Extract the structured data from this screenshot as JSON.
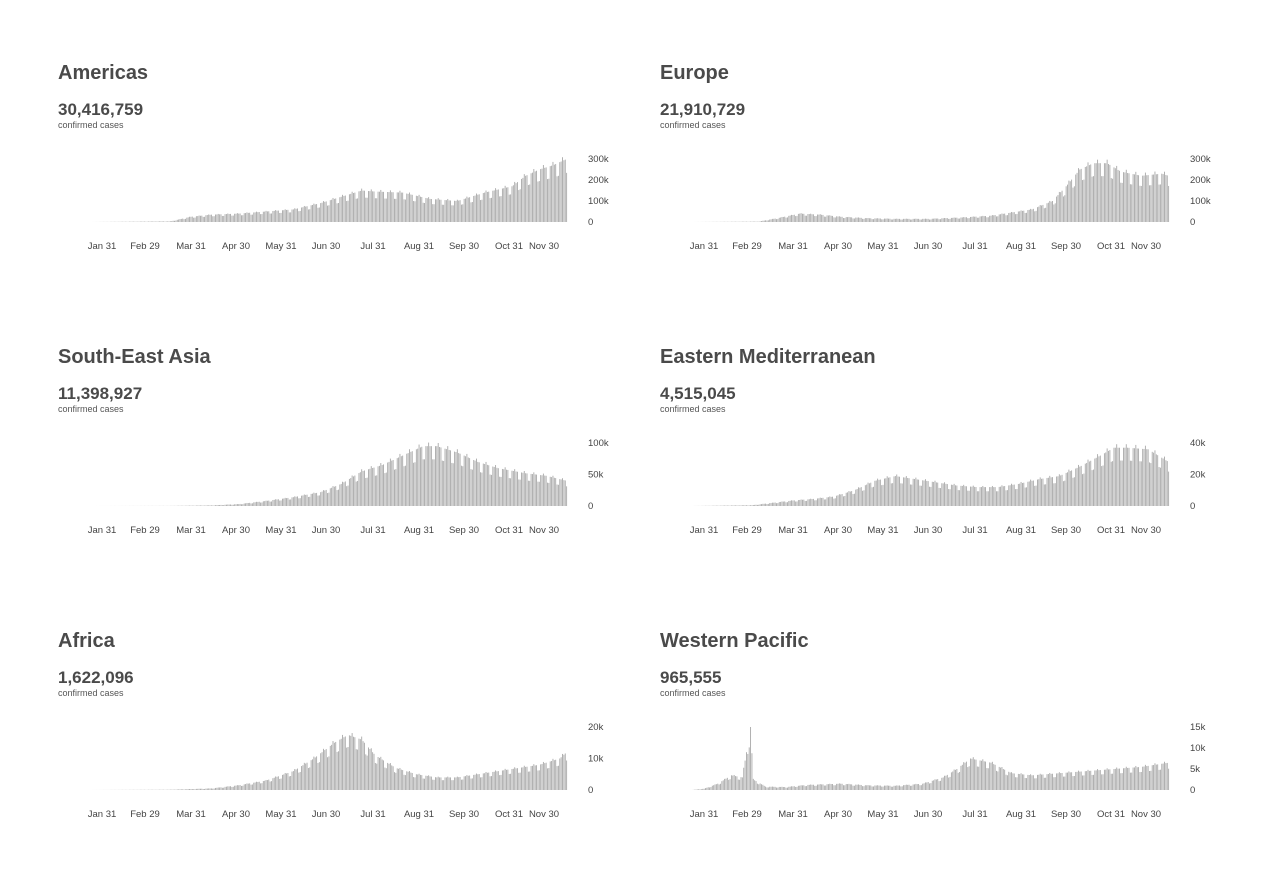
{
  "colors": {
    "bar": "#a9a9a9",
    "text": "#4a4a4a"
  },
  "chart_data": [
    {
      "type": "bar",
      "title": "Americas",
      "total": "30,416,759",
      "total_label": "confirmed cases",
      "x_ticks": [
        "Jan 31",
        "Feb 29",
        "Mar 31",
        "Apr 30",
        "May 31",
        "Jun 30",
        "Jul 31",
        "Aug 31",
        "Sep 30",
        "Oct 31",
        "Nov 30"
      ],
      "y_ticks": [
        "300k",
        "200k",
        "100k",
        "0"
      ],
      "ylim": [
        0,
        300000
      ],
      "grid": false,
      "series": [
        {
          "values": [
            [
              1,
              0
            ],
            [
              60,
              3000
            ],
            [
              75,
              25000
            ],
            [
              90,
              35000
            ],
            [
              110,
              40000
            ],
            [
              130,
              50000
            ],
            [
              150,
              60000
            ],
            [
              170,
              90000
            ],
            [
              190,
              130000
            ],
            [
              200,
              150000
            ],
            [
              210,
              145000
            ],
            [
              230,
              140000
            ],
            [
              250,
              110000
            ],
            [
              270,
              100000
            ],
            [
              290,
              140000
            ],
            [
              310,
              170000
            ],
            [
              320,
              220000
            ],
            [
              330,
              250000
            ],
            [
              340,
              270000
            ],
            [
              350,
              300000
            ]
          ]
        }
      ]
    },
    {
      "type": "bar",
      "title": "Europe",
      "total": "21,910,729",
      "total_label": "confirmed cases",
      "x_ticks": [
        "Jan 31",
        "Feb 29",
        "Mar 31",
        "Apr 30",
        "May 31",
        "Jun 30",
        "Jul 31",
        "Aug 31",
        "Sep 30",
        "Oct 31",
        "Nov 30"
      ],
      "y_ticks": [
        "300k",
        "200k",
        "100k",
        "0"
      ],
      "ylim": [
        0,
        300000
      ],
      "grid": false,
      "series": [
        {
          "values": [
            [
              1,
              0
            ],
            [
              50,
              2000
            ],
            [
              65,
              20000
            ],
            [
              80,
              40000
            ],
            [
              95,
              35000
            ],
            [
              110,
              25000
            ],
            [
              130,
              18000
            ],
            [
              150,
              15000
            ],
            [
              175,
              15000
            ],
            [
              200,
              22000
            ],
            [
              220,
              30000
            ],
            [
              235,
              45000
            ],
            [
              250,
              60000
            ],
            [
              265,
              100000
            ],
            [
              275,
              170000
            ],
            [
              285,
              250000
            ],
            [
              295,
              280000
            ],
            [
              305,
              280000
            ],
            [
              315,
              240000
            ],
            [
              330,
              220000
            ],
            [
              345,
              230000
            ],
            [
              350,
              220000
            ]
          ]
        }
      ]
    },
    {
      "type": "bar",
      "title": "South-East Asia",
      "total": "11,398,927",
      "total_label": "confirmed cases",
      "x_ticks": [
        "Jan 31",
        "Feb 29",
        "Mar 31",
        "Apr 30",
        "May 31",
        "Jun 30",
        "Jul 31",
        "Aug 31",
        "Sep 30",
        "Oct 31",
        "Nov 30"
      ],
      "y_ticks": [
        "100k",
        "50k",
        "0"
      ],
      "ylim": [
        0,
        100000
      ],
      "grid": false,
      "series": [
        {
          "values": [
            [
              1,
              0
            ],
            [
              60,
              200
            ],
            [
              90,
              1000
            ],
            [
              110,
              3000
            ],
            [
              130,
              8000
            ],
            [
              150,
              14000
            ],
            [
              170,
              22000
            ],
            [
              185,
              35000
            ],
            [
              200,
              55000
            ],
            [
              215,
              65000
            ],
            [
              230,
              80000
            ],
            [
              245,
              95000
            ],
            [
              255,
              95000
            ],
            [
              270,
              85000
            ],
            [
              285,
              70000
            ],
            [
              300,
              60000
            ],
            [
              320,
              52000
            ],
            [
              335,
              48000
            ],
            [
              350,
              40000
            ]
          ]
        }
      ]
    },
    {
      "type": "bar",
      "title": "Eastern Mediterranean",
      "total": "4,515,045",
      "total_label": "confirmed cases",
      "x_ticks": [
        "Jan 31",
        "Feb 29",
        "Mar 31",
        "Apr 30",
        "May 31",
        "Jun 30",
        "Jul 31",
        "Aug 31",
        "Sep 30",
        "Oct 31",
        "Nov 30"
      ],
      "y_ticks": [
        "40k",
        "20k",
        "0"
      ],
      "ylim": [
        0,
        40000
      ],
      "grid": false,
      "series": [
        {
          "values": [
            [
              1,
              0
            ],
            [
              45,
              500
            ],
            [
              60,
              2000
            ],
            [
              75,
              3500
            ],
            [
              90,
              4500
            ],
            [
              105,
              6000
            ],
            [
              120,
              10000
            ],
            [
              135,
              16000
            ],
            [
              150,
              19000
            ],
            [
              165,
              17000
            ],
            [
              180,
              15000
            ],
            [
              195,
              13000
            ],
            [
              210,
              12000
            ],
            [
              225,
              12000
            ],
            [
              240,
              14000
            ],
            [
              255,
              17000
            ],
            [
              270,
              19000
            ],
            [
              285,
              25000
            ],
            [
              300,
              32000
            ],
            [
              310,
              37000
            ],
            [
              320,
              37000
            ],
            [
              335,
              36000
            ],
            [
              350,
              28000
            ]
          ]
        }
      ]
    },
    {
      "type": "bar",
      "title": "Africa",
      "total": "1,622,096",
      "total_label": "confirmed cases",
      "x_ticks": [
        "Jan 31",
        "Feb 29",
        "Mar 31",
        "Apr 30",
        "May 31",
        "Jun 30",
        "Jul 31",
        "Aug 31",
        "Sep 30",
        "Oct 31",
        "Nov 30"
      ],
      "y_ticks": [
        "20k",
        "10k",
        "0"
      ],
      "ylim": [
        0,
        20000
      ],
      "grid": false,
      "series": [
        {
          "values": [
            [
              1,
              0
            ],
            [
              60,
              100
            ],
            [
              90,
              500
            ],
            [
              110,
              1500
            ],
            [
              130,
              3000
            ],
            [
              150,
              6000
            ],
            [
              165,
              10000
            ],
            [
              180,
              15000
            ],
            [
              190,
              17500
            ],
            [
              200,
              16000
            ],
            [
              210,
              11000
            ],
            [
              225,
              7000
            ],
            [
              240,
              5000
            ],
            [
              255,
              4000
            ],
            [
              270,
              4000
            ],
            [
              285,
              5000
            ],
            [
              300,
              6000
            ],
            [
              315,
              7000
            ],
            [
              330,
              8000
            ],
            [
              345,
              10000
            ],
            [
              350,
              12000
            ]
          ]
        }
      ]
    },
    {
      "type": "bar",
      "title": "Western Pacific",
      "total": "965,555",
      "total_label": "confirmed cases",
      "x_ticks": [
        "Jan 31",
        "Feb 29",
        "Mar 31",
        "Apr 30",
        "May 31",
        "Jun 30",
        "Jul 31",
        "Aug 31",
        "Sep 30",
        "Oct 31",
        "Nov 30"
      ],
      "y_ticks": [
        "15k",
        "10k",
        "5k",
        "0"
      ],
      "ylim": [
        0,
        15000
      ],
      "grid": false,
      "series": [
        {
          "values": [
            [
              1,
              0
            ],
            [
              10,
              300
            ],
            [
              20,
              1500
            ],
            [
              30,
              3500
            ],
            [
              38,
              3000
            ],
            [
              44,
              15000
            ],
            [
              46,
              2500
            ],
            [
              55,
              800
            ],
            [
              70,
              700
            ],
            [
              85,
              1200
            ],
            [
              110,
              1500
            ],
            [
              130,
              1100
            ],
            [
              150,
              1000
            ],
            [
              170,
              1500
            ],
            [
              185,
              3000
            ],
            [
              195,
              5000
            ],
            [
              205,
              7500
            ],
            [
              220,
              6500
            ],
            [
              235,
              4000
            ],
            [
              250,
              3500
            ],
            [
              270,
              4000
            ],
            [
              290,
              4500
            ],
            [
              310,
              5000
            ],
            [
              330,
              5500
            ],
            [
              350,
              6500
            ]
          ]
        }
      ]
    }
  ]
}
